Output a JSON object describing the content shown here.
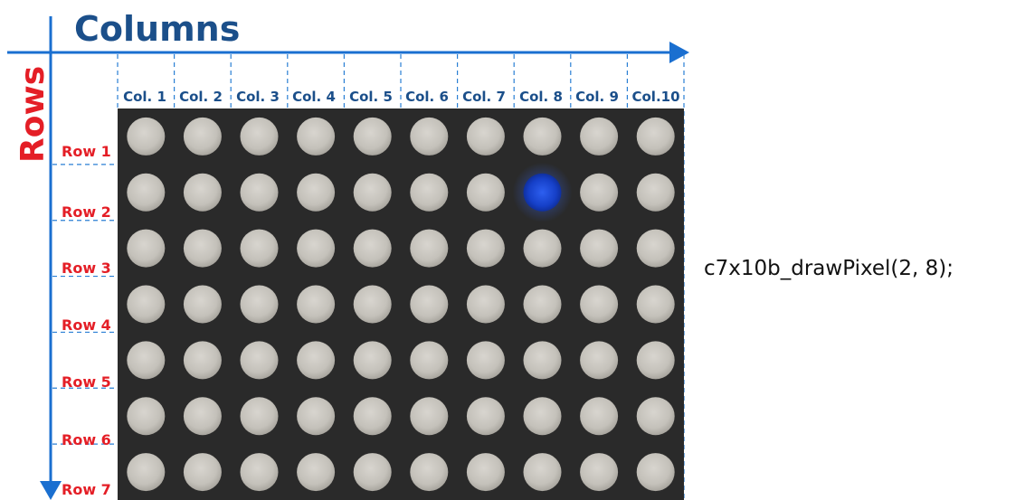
{
  "titles": {
    "columns": "Columns",
    "rows": "Rows"
  },
  "matrix": {
    "rows": 7,
    "cols": 10,
    "col_labels": [
      "Col. 1",
      "Col. 2",
      "Col. 3",
      "Col. 4",
      "Col. 5",
      "Col. 6",
      "Col. 7",
      "Col. 8",
      "Col. 9",
      "Col.10"
    ],
    "row_labels": [
      "Row 1",
      "Row 2",
      "Row 3",
      "Row 4",
      "Row 5",
      "Row 6",
      "Row 7"
    ],
    "lit_pixel": {
      "row": 2,
      "col": 8
    },
    "colors": {
      "panel": "#2a2a2a",
      "led_off": "#c9c6bf",
      "led_on": "#1f4fd6",
      "arrow": "#1a6fd0",
      "column_title": "#1b4f8a",
      "row_title": "#e41e26"
    }
  },
  "code": "c7x10b_drawPixel(2, 8);"
}
